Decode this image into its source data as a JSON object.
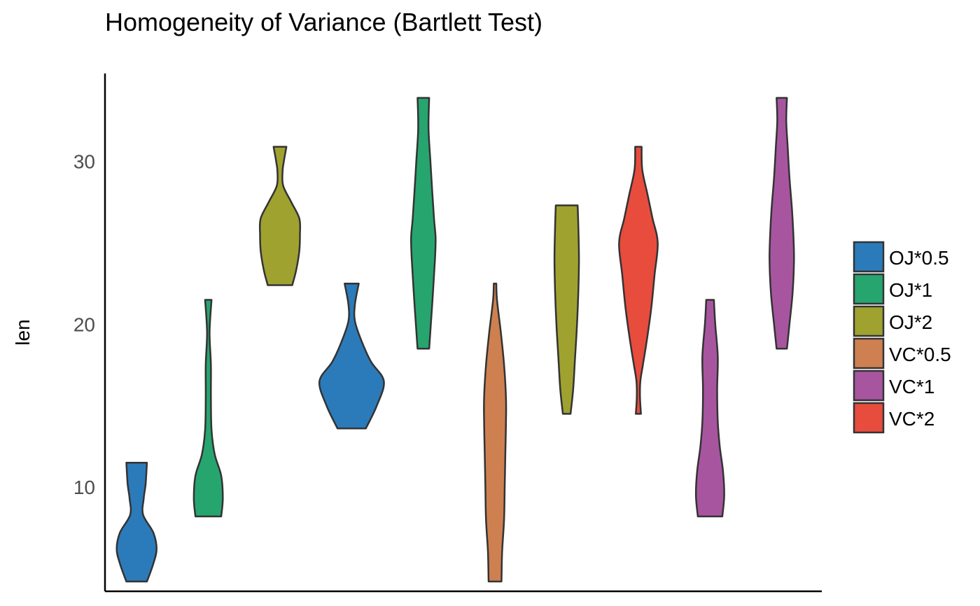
{
  "chart_data": {
    "type": "violin",
    "title": "Homogeneity of Variance (Bartlett Test)",
    "xlabel": "",
    "ylabel": "len",
    "ylim": [
      3.6,
      35.4
    ],
    "yticks": [
      10,
      20,
      30
    ],
    "legend_position": "right",
    "grid": false,
    "groups": [
      {
        "name": "OJ*0.5",
        "color": "#2b7bba",
        "profile": [
          [
            4.2,
            0.32
          ],
          [
            5.3,
            0.52
          ],
          [
            6.2,
            0.62
          ],
          [
            7.2,
            0.52
          ],
          [
            8.3,
            0.2
          ],
          [
            9.3,
            0.22
          ],
          [
            10.2,
            0.28
          ],
          [
            11.5,
            0.32
          ]
        ]
      },
      {
        "name": "OJ*1",
        "color": "#27a56f",
        "profile": [
          [
            8.2,
            0.4
          ],
          [
            9.3,
            0.45
          ],
          [
            10.7,
            0.4
          ],
          [
            12,
            0.2
          ],
          [
            13.5,
            0.1
          ],
          [
            15.5,
            0.08
          ],
          [
            17.5,
            0.08
          ],
          [
            19.5,
            0.04
          ],
          [
            21.5,
            0.1
          ]
        ]
      },
      {
        "name": "OJ*2",
        "color": "#a0a22f",
        "profile": [
          [
            22.4,
            0.38
          ],
          [
            23.3,
            0.5
          ],
          [
            24.5,
            0.6
          ],
          [
            25.5,
            0.62
          ],
          [
            26.5,
            0.6
          ],
          [
            27.5,
            0.35
          ],
          [
            28.5,
            0.1
          ],
          [
            29.4,
            0.08
          ],
          [
            30,
            0.12
          ],
          [
            30.9,
            0.2
          ]
        ]
      },
      {
        "name": "OJ*0.5",
        "color": "#2b7bba",
        "profile": [
          [
            13.6,
            0.44
          ],
          [
            15,
            0.78
          ],
          [
            16.5,
            1
          ],
          [
            17.7,
            0.6
          ],
          [
            19,
            0.3
          ],
          [
            20.2,
            0.1
          ],
          [
            21.2,
            0.1
          ],
          [
            22.5,
            0.22
          ]
        ]
      },
      {
        "name": "OJ*1",
        "color": "#27a56f",
        "profile": [
          [
            18.5,
            0.18
          ],
          [
            20.5,
            0.25
          ],
          [
            22,
            0.3
          ],
          [
            24,
            0.36
          ],
          [
            25.3,
            0.38
          ],
          [
            26.5,
            0.33
          ],
          [
            28,
            0.28
          ],
          [
            30,
            0.22
          ],
          [
            32,
            0.16
          ],
          [
            33.9,
            0.18
          ]
        ]
      },
      {
        "name": "VC*0.5",
        "color": "#cf8050",
        "profile": [
          [
            4.2,
            0.2
          ],
          [
            6,
            0.22
          ],
          [
            8,
            0.28
          ],
          [
            10,
            0.3
          ],
          [
            12,
            0.32
          ],
          [
            14,
            0.34
          ],
          [
            15.5,
            0.34
          ],
          [
            17.5,
            0.28
          ],
          [
            19.5,
            0.18
          ],
          [
            21.5,
            0.06
          ],
          [
            22.5,
            0.04
          ]
        ]
      },
      {
        "name": "OJ*2",
        "color": "#a0a22f",
        "profile": [
          [
            14.5,
            0.12
          ],
          [
            16,
            0.2
          ],
          [
            18,
            0.26
          ],
          [
            20,
            0.32
          ],
          [
            22,
            0.36
          ],
          [
            24,
            0.38
          ],
          [
            26,
            0.36
          ],
          [
            27.3,
            0.34
          ]
        ]
      },
      {
        "name": "VC*2",
        "color": "#e84c3d",
        "profile": [
          [
            14.5,
            0.08
          ],
          [
            15.5,
            0.05
          ],
          [
            16.5,
            0.06
          ],
          [
            17.5,
            0.14
          ],
          [
            19,
            0.26
          ],
          [
            21,
            0.4
          ],
          [
            23,
            0.5
          ],
          [
            25,
            0.6
          ],
          [
            26.5,
            0.44
          ],
          [
            28,
            0.28
          ],
          [
            29.5,
            0.12
          ],
          [
            30.9,
            0.1
          ]
        ]
      },
      {
        "name": "VC*1",
        "color": "#a855a0",
        "profile": [
          [
            8.2,
            0.38
          ],
          [
            9.5,
            0.44
          ],
          [
            11,
            0.4
          ],
          [
            12.5,
            0.3
          ],
          [
            14,
            0.24
          ],
          [
            16,
            0.22
          ],
          [
            18,
            0.24
          ],
          [
            20,
            0.16
          ],
          [
            21.5,
            0.12
          ]
        ]
      },
      {
        "name": "VC*1",
        "color": "#a855a0",
        "profile": [
          [
            18.5,
            0.16
          ],
          [
            20,
            0.24
          ],
          [
            22,
            0.34
          ],
          [
            24,
            0.38
          ],
          [
            25.5,
            0.36
          ],
          [
            27,
            0.32
          ],
          [
            29,
            0.24
          ],
          [
            31,
            0.18
          ],
          [
            32.5,
            0.14
          ],
          [
            33.9,
            0.16
          ]
        ]
      }
    ],
    "legend": [
      {
        "label": "OJ*0.5",
        "color": "#2b7bba"
      },
      {
        "label": "OJ*1",
        "color": "#27a56f"
      },
      {
        "label": "OJ*2",
        "color": "#a0a22f"
      },
      {
        "label": "VC*0.5",
        "color": "#cf8050"
      },
      {
        "label": "VC*1",
        "color": "#a855a0"
      },
      {
        "label": "VC*2",
        "color": "#e84c3d"
      }
    ]
  }
}
